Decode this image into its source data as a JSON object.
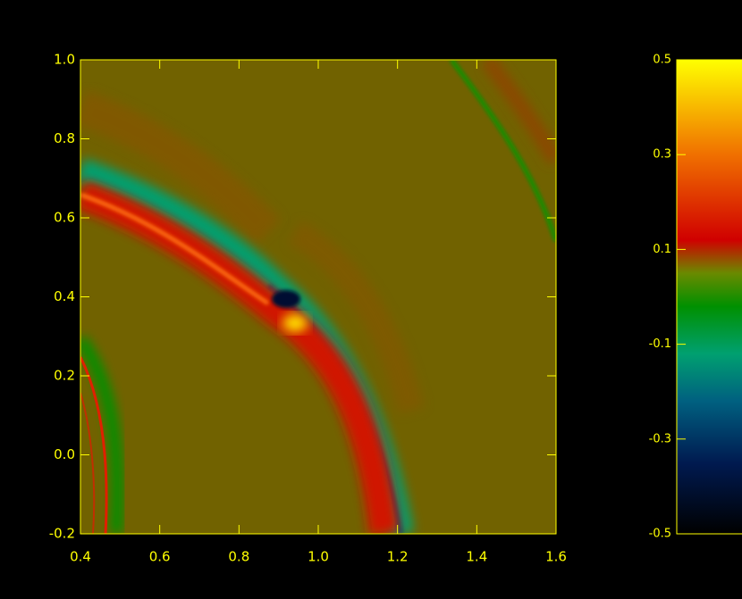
{
  "chart_data": {
    "type": "heatmap",
    "xlim": [
      0.4,
      1.6
    ],
    "xticks": [
      0.4,
      0.6,
      0.8,
      {
        "value": 1.0,
        "label": "1.0"
      },
      1.2,
      1.4,
      1.6
    ],
    "ylim": [
      -0.2,
      1.0
    ],
    "yticks": [
      -0.2,
      {
        "value": 0.0,
        "label": "0.0"
      },
      0.2,
      0.4,
      0.6,
      0.8,
      {
        "value": 1.0,
        "label": "1.0"
      }
    ],
    "colorbar": {
      "lim": [
        -0.5,
        0.5
      ],
      "ticks": [
        -0.5,
        -0.3,
        -0.1,
        0.1,
        0.3,
        0.5
      ]
    },
    "axis_color": "#ffff00"
  }
}
